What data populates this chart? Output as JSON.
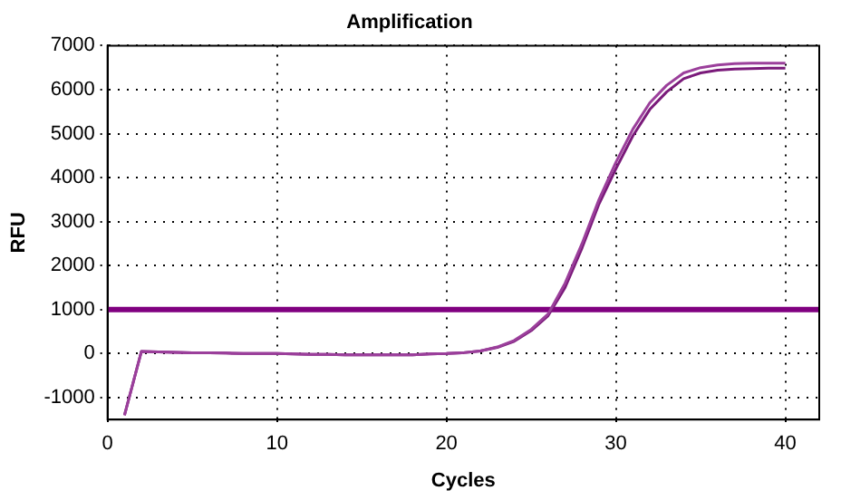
{
  "chart_data": {
    "type": "line",
    "title": "Amplification",
    "xlabel": "Cycles",
    "ylabel": "RFU",
    "x": [
      1,
      2,
      3,
      4,
      5,
      6,
      7,
      8,
      9,
      10,
      11,
      12,
      13,
      14,
      15,
      16,
      17,
      18,
      19,
      20,
      21,
      22,
      23,
      24,
      25,
      26,
      27,
      28,
      29,
      30,
      31,
      32,
      33,
      34,
      35,
      36,
      37,
      38,
      39,
      40
    ],
    "series": [
      {
        "color": "#9b3f9b",
        "values": [
          -1400,
          50,
          40,
          30,
          20,
          20,
          10,
          0,
          0,
          0,
          -10,
          -20,
          -20,
          -30,
          -30,
          -30,
          -30,
          -30,
          -10,
          0,
          20,
          60,
          150,
          300,
          550,
          900,
          1600,
          2500,
          3500,
          4350,
          5100,
          5700,
          6100,
          6380,
          6500,
          6560,
          6590,
          6600,
          6600,
          6600
        ]
      },
      {
        "color": "#7a1a7a",
        "values": [
          -1400,
          50,
          40,
          30,
          20,
          20,
          10,
          0,
          0,
          0,
          -10,
          -20,
          -20,
          -30,
          -30,
          -30,
          -30,
          -30,
          -10,
          0,
          20,
          60,
          140,
          280,
          520,
          860,
          1500,
          2400,
          3400,
          4200,
          4950,
          5550,
          5950,
          6250,
          6380,
          6440,
          6470,
          6480,
          6490,
          6490
        ]
      }
    ],
    "ref_lines": [
      {
        "axis": "y",
        "value": 1000,
        "color": "#800080"
      }
    ],
    "xlim": [
      0,
      42
    ],
    "xticks": [
      0,
      10,
      20,
      30,
      40
    ],
    "ylim": [
      -1500,
      7000
    ],
    "yticks": [
      -1000,
      0,
      1000,
      2000,
      3000,
      4000,
      5000,
      6000,
      7000
    ],
    "grid": true,
    "marker": "none",
    "line_style": "solid",
    "legend": false
  }
}
